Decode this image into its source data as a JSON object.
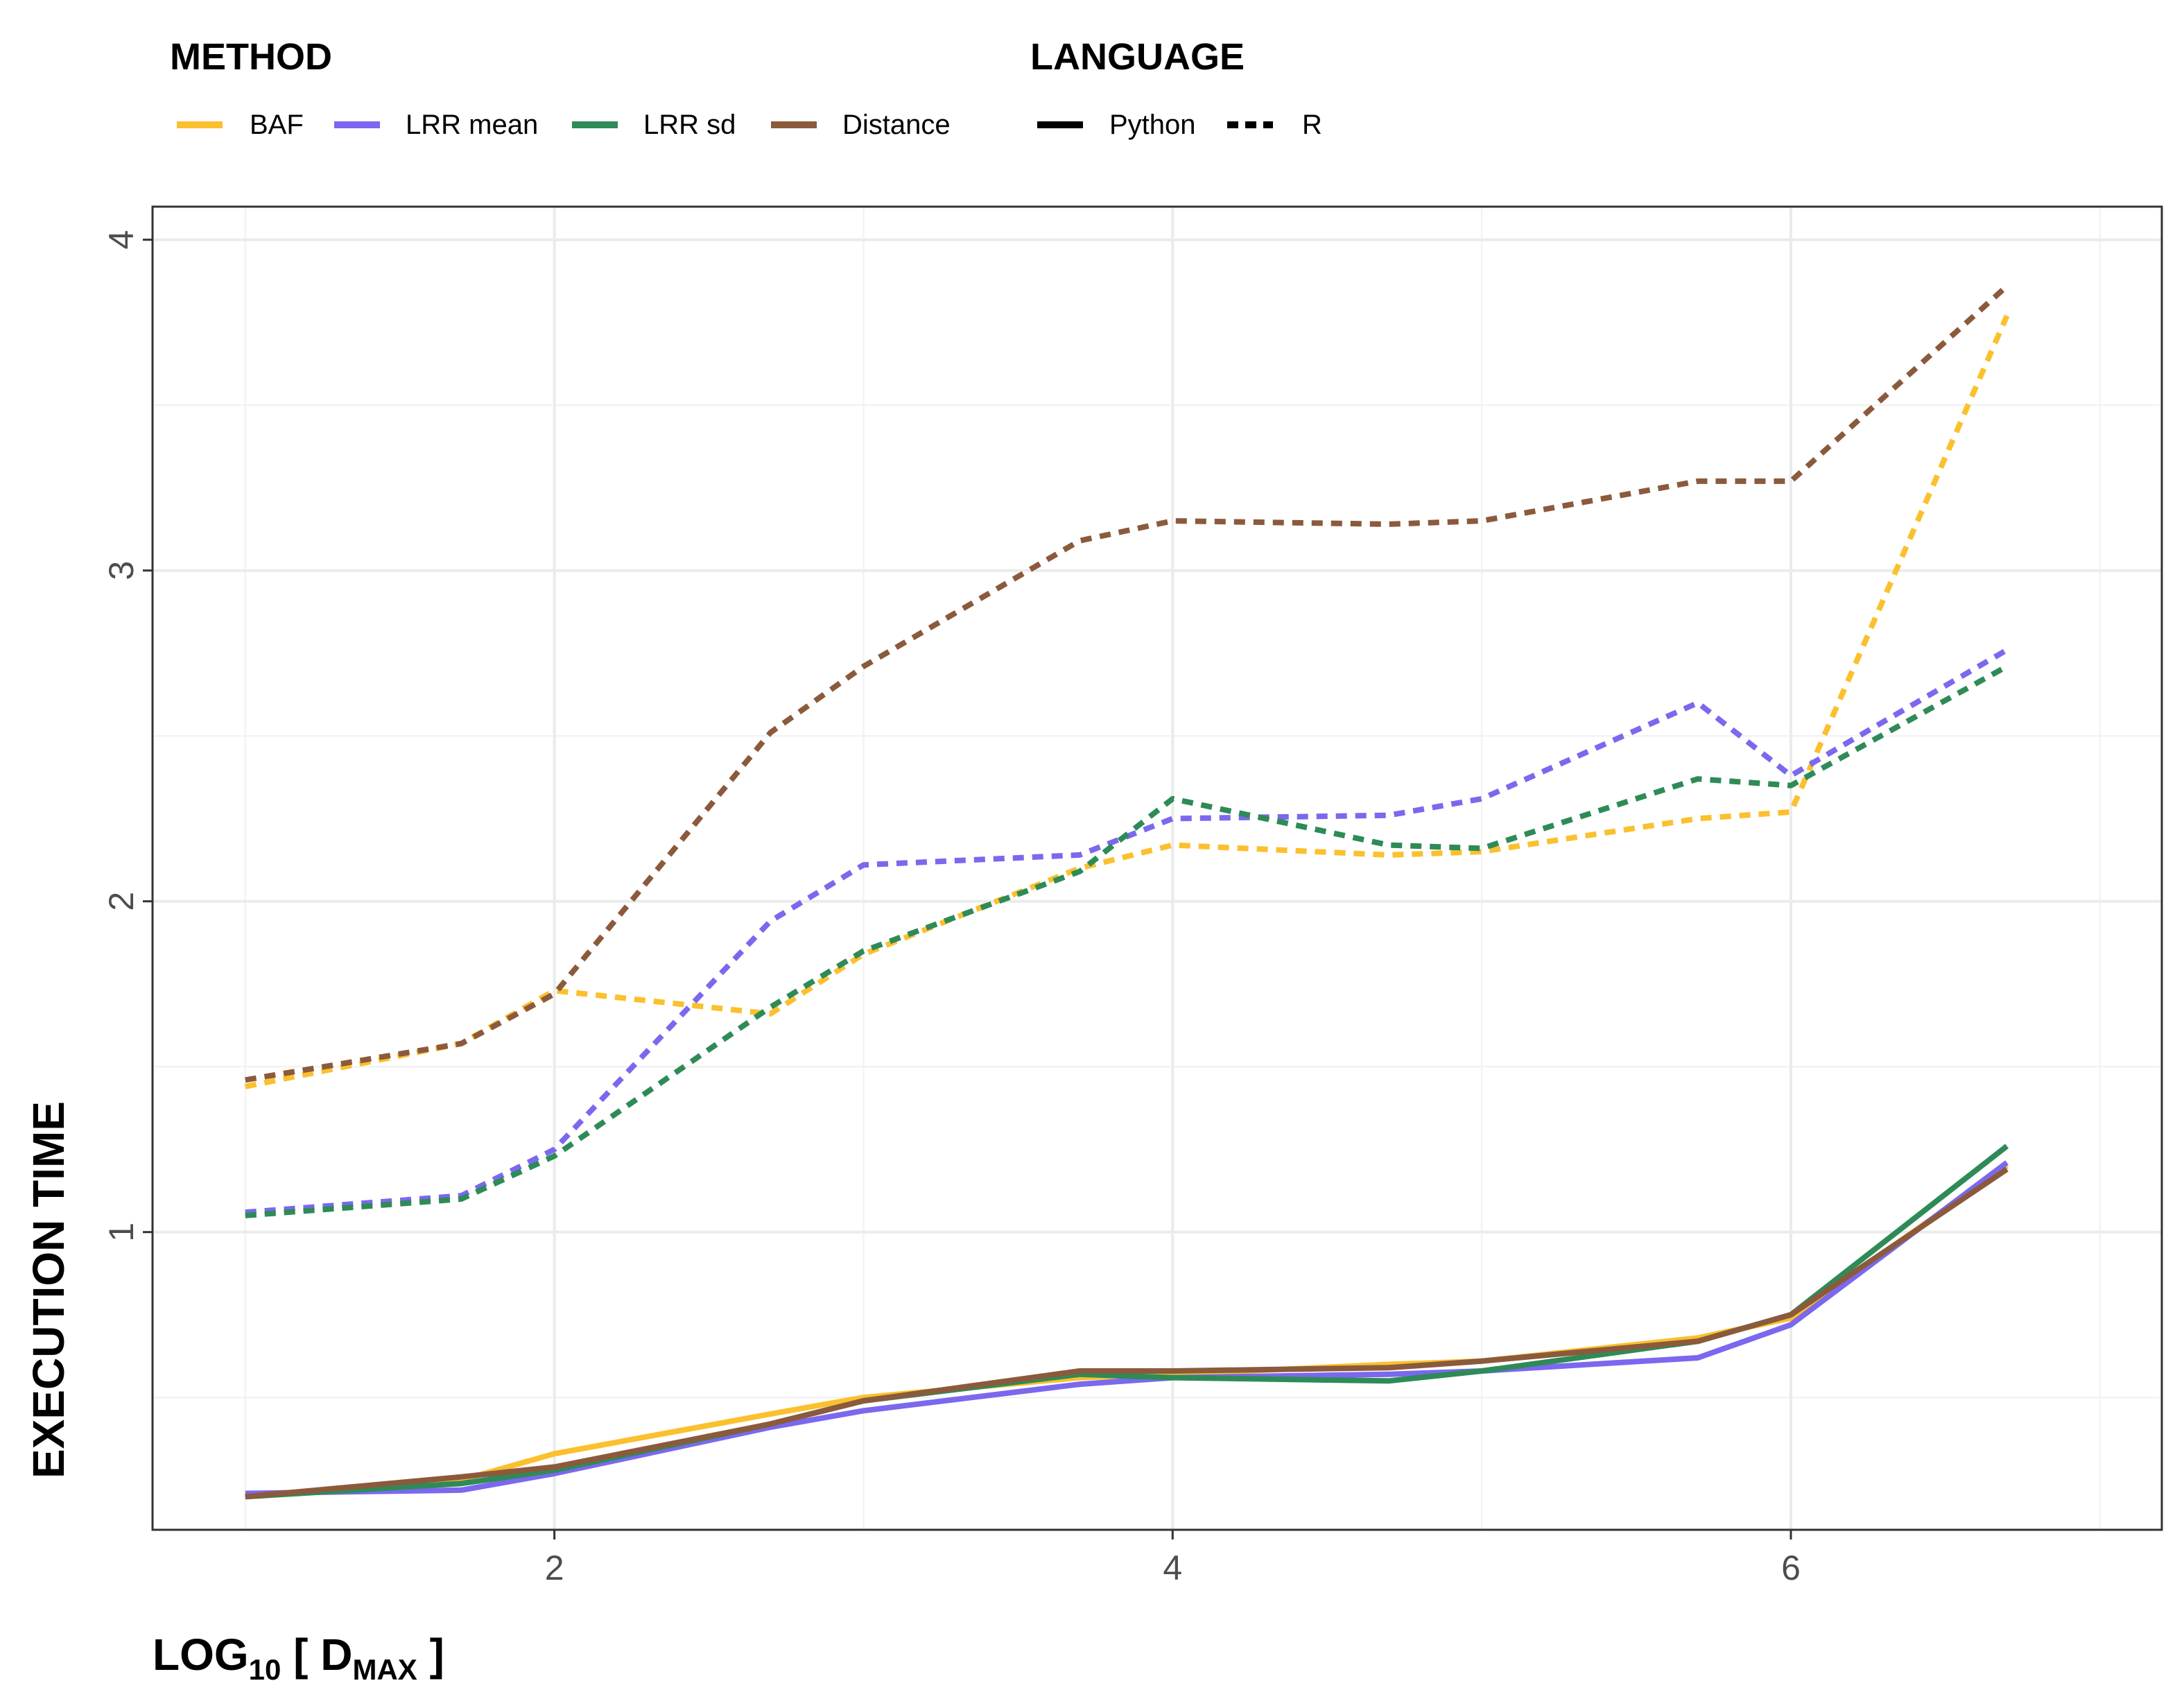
{
  "chart_data": {
    "type": "line",
    "xlabel": {
      "main": "LOG",
      "sub": "10",
      "bracket_open": " [ D",
      "sub2": "MAX",
      "bracket_close": " ]"
    },
    "ylabel": "EXECUTION TIME",
    "xlim": [
      0.7,
      7.2
    ],
    "ylim": [
      0.1,
      4.1
    ],
    "x_ticks": [
      "2",
      "4",
      "6"
    ],
    "y_ticks": [
      "1",
      "2",
      "3",
      "4"
    ],
    "grid": true,
    "legend": {
      "placement": "top",
      "method_title": "METHOD",
      "language_title": "LANGUAGE",
      "methods": [
        {
          "name": "BAF",
          "color": "#FBC02D"
        },
        {
          "name": "LRR mean",
          "color": "#7B68EE"
        },
        {
          "name": "LRR sd",
          "color": "#2E8B57"
        },
        {
          "name": "Distance",
          "color": "#8B5A3C"
        }
      ],
      "languages": [
        {
          "name": "Python",
          "linetype": "solid"
        },
        {
          "name": "R",
          "linetype": "dashed"
        }
      ]
    },
    "x": [
      1,
      1.699,
      2,
      2.699,
      3,
      3.699,
      4,
      4.699,
      5,
      5.699,
      6,
      6.699
    ],
    "series": [
      {
        "method": "BAF",
        "language": "Python",
        "color": "#FBC02D",
        "dashed": false,
        "values": [
          0.2,
          0.25,
          0.33,
          0.45,
          0.5,
          0.56,
          0.57,
          0.6,
          0.61,
          0.68,
          0.74,
          1.2
        ]
      },
      {
        "method": "LRR mean",
        "language": "Python",
        "color": "#7B68EE",
        "dashed": false,
        "values": [
          0.21,
          0.22,
          0.27,
          0.41,
          0.46,
          0.54,
          0.56,
          0.57,
          0.58,
          0.62,
          0.72,
          1.21
        ]
      },
      {
        "method": "LRR sd",
        "language": "Python",
        "color": "#2E8B57",
        "dashed": false,
        "values": [
          0.2,
          0.24,
          0.28,
          0.42,
          0.49,
          0.57,
          0.56,
          0.55,
          0.58,
          0.67,
          0.75,
          1.26
        ]
      },
      {
        "method": "Distance",
        "language": "Python",
        "color": "#8B5A3C",
        "dashed": false,
        "values": [
          0.2,
          0.26,
          0.29,
          0.42,
          0.49,
          0.58,
          0.58,
          0.59,
          0.61,
          0.67,
          0.75,
          1.19
        ]
      },
      {
        "method": "BAF",
        "language": "R",
        "color": "#FBC02D",
        "dashed": true,
        "values": [
          1.44,
          1.57,
          1.73,
          1.66,
          1.84,
          2.1,
          2.17,
          2.14,
          2.15,
          2.25,
          2.27,
          3.77
        ]
      },
      {
        "method": "LRR mean",
        "language": "R",
        "color": "#7B68EE",
        "dashed": true,
        "values": [
          1.06,
          1.11,
          1.25,
          1.94,
          2.11,
          2.14,
          2.25,
          2.26,
          2.31,
          2.6,
          2.38,
          2.76
        ]
      },
      {
        "method": "LRR sd",
        "language": "R",
        "color": "#2E8B57",
        "dashed": true,
        "values": [
          1.05,
          1.1,
          1.23,
          1.68,
          1.85,
          2.09,
          2.31,
          2.17,
          2.16,
          2.37,
          2.35,
          2.71
        ]
      },
      {
        "method": "Distance",
        "language": "R",
        "color": "#8B5A3C",
        "dashed": true,
        "values": [
          1.46,
          1.57,
          1.72,
          2.51,
          2.71,
          3.09,
          3.15,
          3.14,
          3.15,
          3.27,
          3.27,
          3.86
        ]
      }
    ]
  }
}
